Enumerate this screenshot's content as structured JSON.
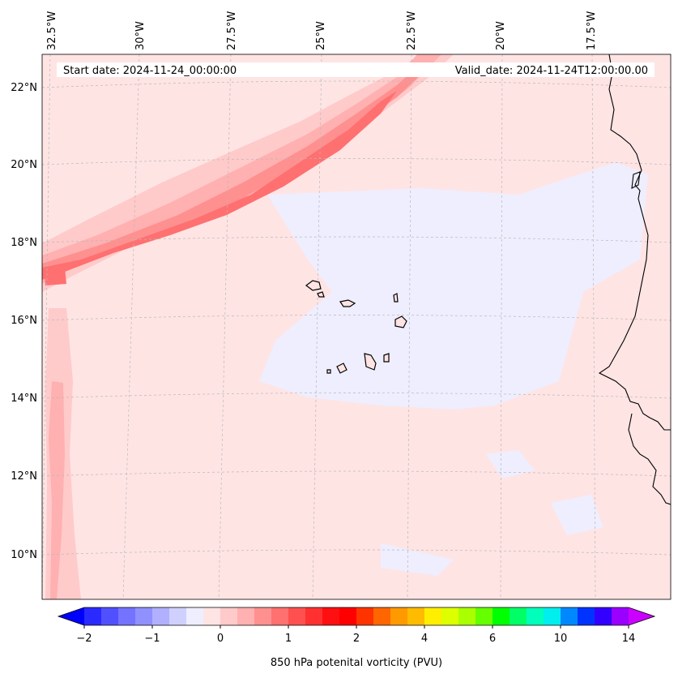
{
  "map": {
    "header": {
      "start_date": "Start date: 2024-11-24_00:00:00",
      "valid_date": "Valid_date: 2024-11-24T12:00:00.00"
    },
    "lon_labels": [
      "32.5°W",
      "30°W",
      "27.5°W",
      "25°W",
      "22.5°W",
      "20°W",
      "17.5°W"
    ],
    "lat_labels": [
      "22°N",
      "20°N",
      "18°N",
      "16°N",
      "14°N",
      "12°N",
      "10°N"
    ],
    "gridlines": "dashed",
    "background_color": "#ffe4e4"
  },
  "colorbar": {
    "label": "850 hPa potenital vorticity (PVU)",
    "ticks": [
      "−2",
      "−1",
      "0",
      "1",
      "2",
      "4",
      "6",
      "10",
      "14"
    ],
    "colors": [
      "#0000ff",
      "#2a2aff",
      "#5050ff",
      "#7373ff",
      "#9090ff",
      "#b0b0ff",
      "#d0d0ff",
      "#eeeeff",
      "#ffe4e4",
      "#ffcaca",
      "#ffb0b0",
      "#ff9090",
      "#ff7070",
      "#ff5050",
      "#ff3030",
      "#ff1010",
      "#ff0000",
      "#ff3300",
      "#ff6600",
      "#ff9900",
      "#ffbb00",
      "#ffee00",
      "#ddff00",
      "#aaff00",
      "#66ff00",
      "#00ff00",
      "#00ff66",
      "#00ffbb",
      "#00eeee",
      "#0088ff",
      "#0033ff",
      "#3300ff",
      "#9900ff",
      "#cc00ff"
    ],
    "extend": "both"
  }
}
